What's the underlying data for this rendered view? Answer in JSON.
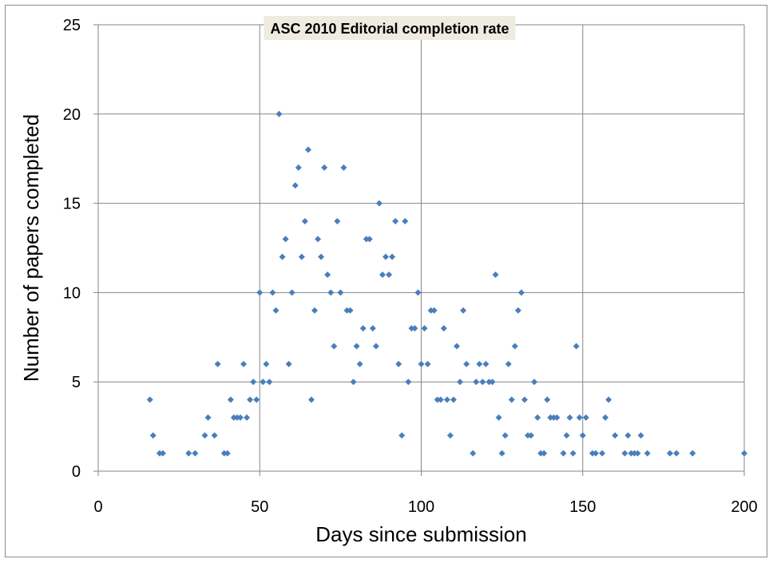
{
  "chart_data": {
    "type": "scatter",
    "title": "ASC 2010 Editorial completion rate",
    "xlabel": "Days since submission",
    "ylabel": "Number of papers completed",
    "xlim": [
      0,
      200
    ],
    "ylim": [
      0,
      25
    ],
    "xticks": [
      0,
      50,
      100,
      150,
      200
    ],
    "yticks": [
      0,
      5,
      10,
      15,
      20,
      25
    ],
    "grid": "major gridlines on both axes",
    "legend": "none",
    "colors": {
      "marker": "#4a7ebb",
      "grid": "#868686",
      "title_bg": "#eeece1"
    },
    "series": [
      {
        "x": [
          16,
          17,
          19,
          20,
          28,
          30,
          33,
          34,
          36,
          37,
          39,
          40,
          41,
          42,
          43,
          44,
          45,
          46,
          47,
          48,
          49,
          50,
          51,
          52,
          53,
          54,
          55,
          56,
          57,
          58,
          59,
          60,
          61,
          62,
          63,
          64,
          65,
          66,
          67,
          68,
          69,
          70,
          71,
          72,
          73,
          74,
          75,
          76,
          77,
          78,
          79,
          80,
          81,
          82,
          83,
          84,
          85,
          86,
          87,
          88,
          89,
          90,
          91,
          92,
          93,
          94,
          95,
          96,
          97,
          98,
          99,
          100,
          101,
          102,
          103,
          104,
          105,
          106,
          107,
          108,
          109,
          110,
          111,
          112,
          113,
          114,
          116,
          117,
          118,
          119,
          120,
          121,
          122,
          123,
          124,
          125,
          126,
          127,
          128,
          129,
          130,
          131,
          132,
          133,
          134,
          135,
          136,
          137,
          138,
          139,
          140,
          141,
          142,
          144,
          145,
          146,
          147,
          148,
          149,
          150,
          151,
          153,
          154,
          156,
          157,
          158,
          160,
          163,
          164,
          165,
          166,
          167,
          168,
          170,
          177,
          179,
          184,
          200
        ],
        "y": [
          4,
          2,
          1,
          1,
          1,
          1,
          2,
          3,
          2,
          6,
          1,
          1,
          4,
          3,
          3,
          3,
          6,
          3,
          4,
          5,
          4,
          10,
          5,
          6,
          5,
          10,
          9,
          20,
          12,
          13,
          6,
          10,
          16,
          17,
          12,
          14,
          18,
          4,
          9,
          13,
          12,
          17,
          11,
          10,
          7,
          14,
          10,
          17,
          9,
          9,
          5,
          7,
          6,
          8,
          13,
          13,
          8,
          7,
          15,
          11,
          12,
          11,
          12,
          14,
          6,
          2,
          14,
          5,
          8,
          8,
          10,
          6,
          8,
          6,
          9,
          9,
          4,
          4,
          8,
          4,
          2,
          4,
          7,
          5,
          9,
          6,
          1,
          5,
          6,
          5,
          6,
          5,
          5,
          11,
          3,
          1,
          2,
          6,
          4,
          7,
          9,
          10,
          4,
          2,
          2,
          5,
          3,
          1,
          1,
          4,
          3,
          3,
          3,
          1,
          2,
          3,
          1,
          7,
          3,
          2,
          3,
          1,
          1,
          1,
          3,
          4,
          2,
          1,
          2,
          1,
          1,
          1,
          2,
          1,
          1,
          1,
          1,
          1
        ]
      }
    ]
  }
}
